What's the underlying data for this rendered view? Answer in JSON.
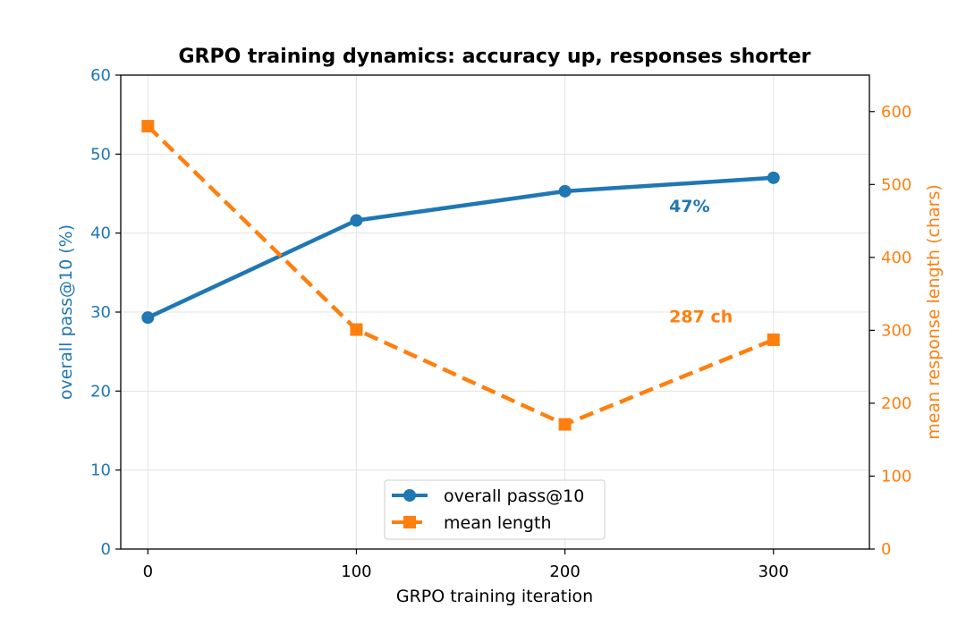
{
  "chart_data": {
    "type": "line",
    "title": "GRPO training dynamics: accuracy up, responses shorter",
    "xlabel": "GRPO training iteration",
    "x": [
      0,
      100,
      200,
      300
    ],
    "xticks": [
      "0",
      "100",
      "200",
      "300"
    ],
    "xlim": [
      -13,
      346
    ],
    "grid": true,
    "legend_position": "bottom-center",
    "y_left": {
      "label": "overall pass@10  (%)",
      "lim": [
        0,
        60
      ],
      "ticks": [
        "0",
        "10",
        "20",
        "30",
        "40",
        "50",
        "60"
      ],
      "color": "#1f77b4"
    },
    "y_right": {
      "label": "mean response length  (chars)",
      "lim": [
        0,
        650
      ],
      "ticks": [
        "0",
        "100",
        "200",
        "300",
        "400",
        "500",
        "600"
      ],
      "color": "#ff7f0e"
    },
    "series": [
      {
        "name": "overall pass@10",
        "axis": "left",
        "color": "#1f77b4",
        "style": "solid",
        "marker": "circle",
        "values": [
          29.3,
          41.6,
          45.3,
          47.0
        ]
      },
      {
        "name": "mean length",
        "axis": "right",
        "color": "#ff7f0e",
        "style": "dashed",
        "marker": "square",
        "values": [
          580,
          301,
          171,
          287
        ]
      }
    ],
    "annotations": [
      {
        "text": "47%",
        "color": "#1f77b4",
        "x": 250,
        "y": 42.7,
        "axis": "left"
      },
      {
        "text": "287 ch",
        "color": "#ff7f0e",
        "x": 250,
        "y": 311,
        "axis": "right"
      }
    ]
  }
}
